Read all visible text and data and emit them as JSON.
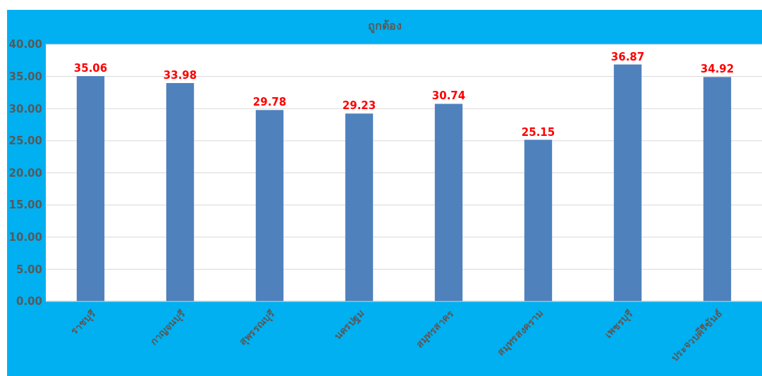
{
  "chart_data": {
    "type": "bar",
    "title": "ถูกต้อง",
    "categories": [
      "ราชบุรี",
      "กาญจนบุรี",
      "สุพรรณบุรี",
      "นครปฐม",
      "สมุทรสาคร",
      "สมุทรสงคราม",
      "เพชรบุรี",
      "ประจวบคีรีขันธ์"
    ],
    "values": [
      35.06,
      33.98,
      29.78,
      29.23,
      30.74,
      25.15,
      36.87,
      34.92
    ],
    "color": "#4f81bd",
    "ylim": [
      0,
      40
    ],
    "yticks": [
      {
        "value": 0,
        "label": "0.00"
      },
      {
        "value": 5,
        "label": "5.00"
      },
      {
        "value": 10,
        "label": "10.00"
      },
      {
        "value": 15,
        "label": "15.00"
      },
      {
        "value": 20,
        "label": "20.00"
      },
      {
        "value": 25,
        "label": "25.00"
      },
      {
        "value": 30,
        "label": "30.00"
      },
      {
        "value": 35,
        "label": "35.00"
      },
      {
        "value": 40,
        "label": "40.00"
      }
    ],
    "grid": "y",
    "data_labels": true
  }
}
